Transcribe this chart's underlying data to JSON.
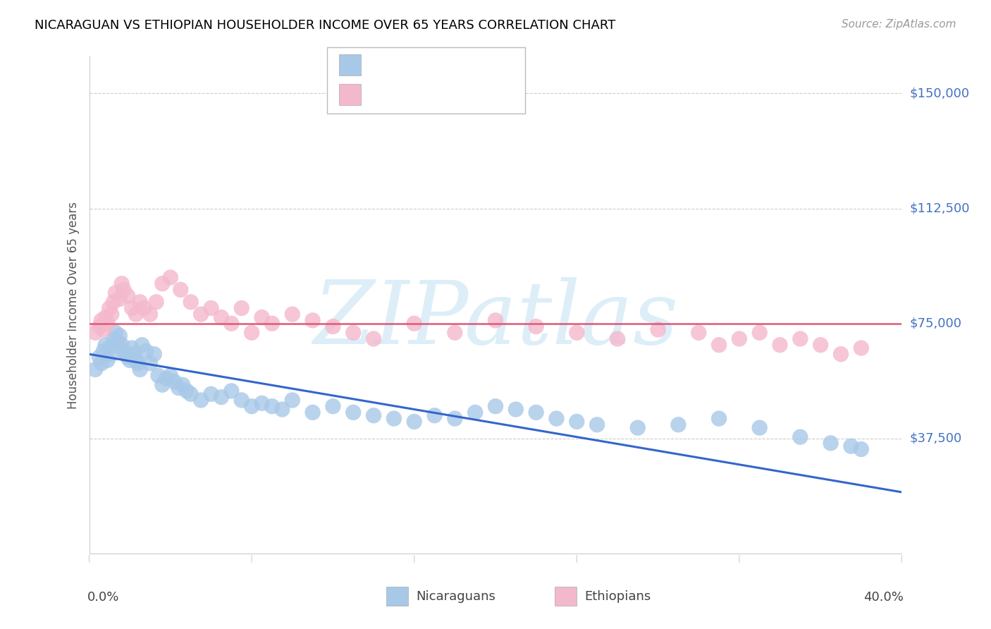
{
  "title": "NICARAGUAN VS ETHIOPIAN HOUSEHOLDER INCOME OVER 65 YEARS CORRELATION CHART",
  "source": "Source: ZipAtlas.com",
  "ylabel": "Householder Income Over 65 years",
  "xlim": [
    0.0,
    0.4
  ],
  "ylim": [
    0,
    162000
  ],
  "nic_color": "#a8c8e8",
  "eth_color": "#f4b8cc",
  "legend_text_color": "#4472c4",
  "watermark": "ZIPatlas",
  "watermark_color": "#ddeef8",
  "grid_color": "#cccccc",
  "nic_trend_color": "#3366cc",
  "eth_trend_color": "#e05878",
  "ytick_vals": [
    37500,
    75000,
    112500,
    150000
  ],
  "ytick_labels": [
    "$37,500",
    "$75,000",
    "$112,500",
    "$150,000"
  ],
  "xtick_positions": [
    0.0,
    0.08,
    0.16,
    0.24,
    0.32,
    0.4
  ],
  "nic_x": [
    0.003,
    0.005,
    0.006,
    0.007,
    0.008,
    0.009,
    0.01,
    0.011,
    0.012,
    0.013,
    0.014,
    0.015,
    0.016,
    0.017,
    0.018,
    0.019,
    0.02,
    0.021,
    0.022,
    0.023,
    0.024,
    0.025,
    0.026,
    0.028,
    0.03,
    0.032,
    0.034,
    0.036,
    0.038,
    0.04,
    0.042,
    0.044,
    0.046,
    0.048,
    0.05,
    0.055,
    0.06,
    0.065,
    0.07,
    0.075,
    0.08,
    0.085,
    0.09,
    0.095,
    0.1,
    0.11,
    0.12,
    0.13,
    0.14,
    0.15,
    0.16,
    0.17,
    0.18,
    0.19,
    0.2,
    0.21,
    0.22,
    0.23,
    0.24,
    0.25,
    0.27,
    0.29,
    0.31,
    0.33,
    0.35,
    0.365,
    0.375,
    0.38
  ],
  "nic_y": [
    60000,
    64000,
    62000,
    66000,
    68000,
    63000,
    67000,
    65000,
    70000,
    72000,
    69000,
    71000,
    68000,
    66000,
    65000,
    64000,
    63000,
    67000,
    65000,
    63000,
    62000,
    60000,
    68000,
    66000,
    62000,
    65000,
    58000,
    55000,
    57000,
    58000,
    56000,
    54000,
    55000,
    53000,
    52000,
    50000,
    52000,
    51000,
    53000,
    50000,
    48000,
    49000,
    48000,
    47000,
    50000,
    46000,
    48000,
    46000,
    45000,
    44000,
    43000,
    45000,
    44000,
    46000,
    48000,
    47000,
    46000,
    44000,
    43000,
    42000,
    41000,
    42000,
    44000,
    41000,
    38000,
    36000,
    35000,
    34000
  ],
  "eth_x": [
    0.003,
    0.005,
    0.006,
    0.007,
    0.008,
    0.009,
    0.01,
    0.011,
    0.012,
    0.013,
    0.015,
    0.016,
    0.017,
    0.019,
    0.021,
    0.023,
    0.025,
    0.027,
    0.03,
    0.033,
    0.036,
    0.04,
    0.045,
    0.05,
    0.055,
    0.06,
    0.065,
    0.07,
    0.075,
    0.08,
    0.085,
    0.09,
    0.1,
    0.11,
    0.12,
    0.13,
    0.14,
    0.16,
    0.18,
    0.2,
    0.22,
    0.24,
    0.26,
    0.28,
    0.3,
    0.31,
    0.32,
    0.33,
    0.34,
    0.35,
    0.36,
    0.37,
    0.38
  ],
  "eth_y": [
    72000,
    74000,
    76000,
    73000,
    77000,
    75000,
    80000,
    78000,
    82000,
    85000,
    83000,
    88000,
    86000,
    84000,
    80000,
    78000,
    82000,
    80000,
    78000,
    82000,
    88000,
    90000,
    86000,
    82000,
    78000,
    80000,
    77000,
    75000,
    80000,
    72000,
    77000,
    75000,
    78000,
    76000,
    74000,
    72000,
    70000,
    75000,
    72000,
    76000,
    74000,
    72000,
    70000,
    73000,
    72000,
    68000,
    70000,
    72000,
    68000,
    70000,
    68000,
    65000,
    67000
  ],
  "nic_trend_x0": 0.0,
  "nic_trend_y0": 65000,
  "nic_trend_x1": 0.4,
  "nic_trend_y1": 20000,
  "eth_trend_y": 75000,
  "title_fontsize": 13,
  "source_fontsize": 11,
  "label_fontsize": 12,
  "tick_label_fontsize": 13,
  "legend_fontsize": 14
}
